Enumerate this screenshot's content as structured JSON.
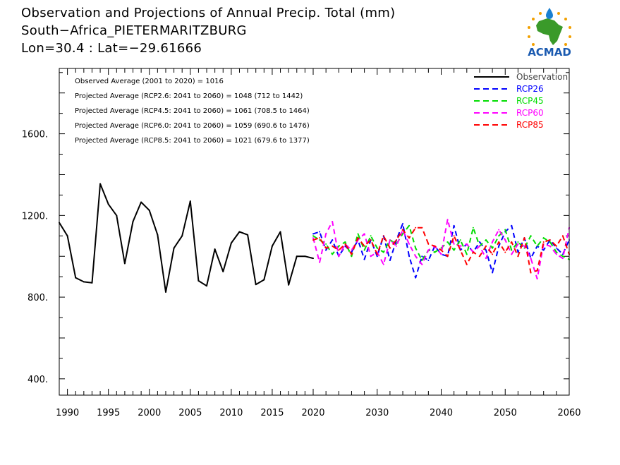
{
  "header": {
    "title_line1": "Observation and Projections of Annual Precip. Total (mm)",
    "title_line2": "South−Africa_PIETERMARITZBURG",
    "title_line3": "Lon=30.4 : Lat=−29.61666",
    "logo_text": "ACMAD"
  },
  "annotations": [
    "Observed Average (2001 to 2020) = 1016",
    "Projected Average (RCP2.6: 2041 to 2060) = 1048 (712 to 1442)",
    "Projected Average (RCP4.5: 2041 to 2060) = 1061 (708.5 to 1464)",
    "Projected Average (RCP6.0: 2041 to 2060) = 1059 (690.6 to 1476)",
    "Projected Average (RCP8.5: 2041 to 2060) = 1021 (679.6 to 1377)"
  ],
  "colors": {
    "observation": "#000000",
    "RCP26": "#0000ff",
    "RCP45": "#00dd00",
    "RCP60": "#ff00ff",
    "RCP85": "#ff0000"
  },
  "chart_data": {
    "type": "line",
    "xlim": [
      1989,
      2060
    ],
    "ylim": [
      320,
      1920
    ],
    "x_ticks_labels": [
      "1990",
      "1995",
      "2000",
      "2005",
      "2010",
      "2015",
      "2020",
      "2030",
      "2040",
      "2050",
      "2060"
    ],
    "x_ticks_values": [
      1990,
      1995,
      2000,
      2005,
      2010,
      2015,
      2020,
      2030,
      2040,
      2050,
      2060
    ],
    "y_ticks_labels": [
      "400.",
      "800.",
      "1200.",
      "1600."
    ],
    "y_ticks_values": [
      400,
      800,
      1200,
      1600
    ],
    "legend_position": "top-right",
    "series": [
      {
        "name": "Observation",
        "style": "solid",
        "x": [
          1989,
          1990,
          1991,
          1992,
          1993,
          1994,
          1995,
          1996,
          1997,
          1998,
          1999,
          2000,
          2001,
          2002,
          2003,
          2004,
          2005,
          2006,
          2007,
          2008,
          2009,
          2010,
          2011,
          2012,
          2013,
          2014,
          2015,
          2016,
          2017,
          2018,
          2019,
          2020
        ],
        "y": [
          1165,
          1100,
          895,
          875,
          870,
          1355,
          1255,
          1200,
          965,
          1170,
          1265,
          1225,
          1105,
          825,
          1040,
          1100,
          1270,
          880,
          855,
          1035,
          925,
          1065,
          1120,
          1105,
          862,
          885,
          1050,
          1120,
          860,
          1000,
          1000,
          990
        ]
      },
      {
        "name": "RCP26",
        "style": "dashed",
        "x": [
          2020,
          2021,
          2022,
          2023,
          2024,
          2025,
          2026,
          2027,
          2028,
          2029,
          2030,
          2031,
          2032,
          2033,
          2034,
          2035,
          2036,
          2037,
          2038,
          2039,
          2040,
          2041,
          2042,
          2043,
          2044,
          2045,
          2046,
          2047,
          2048,
          2049,
          2050,
          2051,
          2052,
          2053,
          2054,
          2055,
          2056,
          2057,
          2058,
          2059,
          2060
        ],
        "y": [
          1110,
          1120,
          1030,
          1080,
          1000,
          1050,
          1020,
          1080,
          985,
          1080,
          1000,
          1100,
          980,
          1080,
          1160,
          1000,
          895,
          1000,
          980,
          1050,
          1010,
          1000,
          1150,
          1030,
          1060,
          1020,
          1070,
          1030,
          920,
          1050,
          1120,
          1150,
          1020,
          1090,
          990,
          1050,
          1030,
          1080,
          1040,
          1010,
          1080
        ]
      },
      {
        "name": "RCP45",
        "style": "dashed",
        "x": [
          2020,
          2021,
          2022,
          2023,
          2024,
          2025,
          2026,
          2027,
          2028,
          2029,
          2030,
          2031,
          2032,
          2033,
          2034,
          2035,
          2036,
          2037,
          2038,
          2039,
          2040,
          2041,
          2042,
          2043,
          2044,
          2045,
          2046,
          2047,
          2048,
          2049,
          2050,
          2051,
          2052,
          2053,
          2054,
          2055,
          2056,
          2057,
          2058,
          2059,
          2060
        ],
        "y": [
          1100,
          1080,
          1060,
          1010,
          1050,
          1070,
          1000,
          1110,
          1030,
          1100,
          1040,
          1020,
          1080,
          1060,
          1110,
          1150,
          1040,
          980,
          1030,
          1020,
          1040,
          1070,
          1030,
          1080,
          1010,
          1140,
          1050,
          1080,
          1040,
          1100,
          1130,
          1030,
          1070,
          1040,
          1100,
          1050,
          1090,
          1070,
          1020,
          1000,
          985
        ]
      },
      {
        "name": "RCP60",
        "style": "dashed",
        "x": [
          2020,
          2021,
          2022,
          2023,
          2024,
          2025,
          2026,
          2027,
          2028,
          2029,
          2030,
          2031,
          2032,
          2033,
          2034,
          2035,
          2036,
          2037,
          2038,
          2039,
          2040,
          2041,
          2042,
          2043,
          2044,
          2045,
          2046,
          2047,
          2048,
          2049,
          2050,
          2051,
          2052,
          2053,
          2054,
          2055,
          2056,
          2057,
          2058,
          2059,
          2060
        ],
        "y": [
          1090,
          970,
          1110,
          1170,
          1000,
          1060,
          1030,
          1080,
          1110,
          1000,
          1020,
          960,
          1080,
          1050,
          1130,
          1060,
          1000,
          960,
          1030,
          1050,
          1010,
          1180,
          1060,
          1050,
          1060,
          1020,
          1050,
          990,
          1070,
          1130,
          1080,
          1010,
          1060,
          1050,
          990,
          890,
          1060,
          1050,
          1010,
          990,
          1140
        ]
      },
      {
        "name": "RCP85",
        "style": "dashed",
        "x": [
          2020,
          2021,
          2022,
          2023,
          2024,
          2025,
          2026,
          2027,
          2028,
          2029,
          2030,
          2031,
          2032,
          2033,
          2034,
          2035,
          2036,
          2037,
          2038,
          2039,
          2040,
          2041,
          2042,
          2043,
          2044,
          2045,
          2046,
          2047,
          2048,
          2049,
          2050,
          2051,
          2052,
          2053,
          2054,
          2055,
          2056,
          2057,
          2058,
          2059,
          2060
        ],
        "y": [
          1080,
          1090,
          1040,
          1050,
          1030,
          1060,
          1010,
          1090,
          1050,
          1080,
          1010,
          1100,
          1040,
          1080,
          1130,
          1090,
          1140,
          1140,
          1060,
          1050,
          1030,
          1000,
          1100,
          1030,
          960,
          1020,
          1000,
          1050,
          1010,
          1070,
          1020,
          1070,
          1000,
          1090,
          920,
          930,
          1070,
          1080,
          1050,
          1100,
          1010
        ]
      }
    ]
  }
}
